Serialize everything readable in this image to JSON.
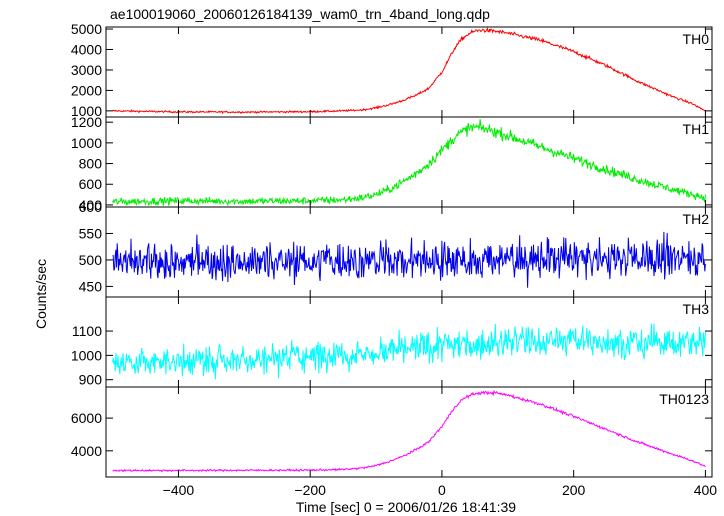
{
  "chart_data": {
    "type": "line",
    "title": "ae100019060_20060126184139_wam0_trn_4band_long.qdp",
    "xlabel": "Time [sec] 0 = 2006/01/26 18:41:39",
    "ylabel": "Counts/sec",
    "xlim": [
      -510,
      410
    ],
    "xticks": [
      -400,
      -200,
      0,
      200,
      400
    ],
    "panels": [
      {
        "name": "TH0",
        "color": "#ff0000",
        "ylim": [
          700,
          5100
        ],
        "yticks": [
          1000,
          2000,
          3000,
          4000,
          5000
        ],
        "x": [
          -500,
          -400,
          -300,
          -200,
          -150,
          -120,
          -100,
          -80,
          -60,
          -40,
          -20,
          0,
          10,
          20,
          30,
          40,
          50,
          60,
          80,
          100,
          150,
          200,
          250,
          300,
          350,
          380,
          400
        ],
        "values": [
          1000,
          950,
          940,
          960,
          1000,
          1050,
          1150,
          1300,
          1500,
          1750,
          2100,
          2900,
          3500,
          4100,
          4500,
          4750,
          4900,
          4950,
          4900,
          4800,
          4450,
          3900,
          3200,
          2400,
          1700,
          1350,
          1000
        ],
        "noise": 30
      },
      {
        "name": "TH1",
        "color": "#00ee00",
        "ylim": [
          380,
          1250
        ],
        "yticks": [
          400,
          600,
          800,
          1000,
          1200
        ],
        "x": [
          -500,
          -400,
          -300,
          -200,
          -150,
          -120,
          -100,
          -80,
          -60,
          -40,
          -20,
          0,
          20,
          40,
          50,
          60,
          80,
          100,
          150,
          200,
          250,
          300,
          350,
          400
        ],
        "values": [
          430,
          440,
          435,
          440,
          450,
          470,
          500,
          550,
          620,
          700,
          800,
          930,
          1060,
          1140,
          1150,
          1145,
          1110,
          1070,
          960,
          850,
          740,
          640,
          550,
          470
        ],
        "noise": 25
      },
      {
        "name": "TH2",
        "color": "#0000ee",
        "ylim": [
          430,
          600
        ],
        "yticks": [
          450,
          500,
          550,
          600
        ],
        "x": [
          -500,
          400
        ],
        "values": [
          495,
          505
        ],
        "noise": 26
      },
      {
        "name": "TH3",
        "color": "#00ffff",
        "ylim": [
          870,
          1240
        ],
        "yticks": [
          900,
          1000,
          1100
        ],
        "x": [
          -500,
          -300,
          -100,
          0,
          100,
          200,
          300,
          400
        ],
        "values": [
          970,
          985,
          1010,
          1040,
          1060,
          1060,
          1055,
          1050
        ],
        "noise": 45
      },
      {
        "name": "TH0123",
        "color": "#ff00ff",
        "ylim": [
          2400,
          7900
        ],
        "yticks": [
          4000,
          6000
        ],
        "x": [
          -500,
          -400,
          -300,
          -200,
          -150,
          -120,
          -100,
          -80,
          -60,
          -40,
          -20,
          0,
          10,
          20,
          30,
          40,
          50,
          60,
          80,
          100,
          150,
          200,
          250,
          300,
          350,
          380,
          400
        ],
        "values": [
          2800,
          2800,
          2810,
          2820,
          2860,
          2950,
          3100,
          3350,
          3650,
          4050,
          4550,
          5500,
          6100,
          6700,
          7100,
          7350,
          7480,
          7550,
          7550,
          7400,
          6850,
          6100,
          5300,
          4500,
          3800,
          3400,
          3050
        ],
        "noise": 40
      }
    ]
  }
}
